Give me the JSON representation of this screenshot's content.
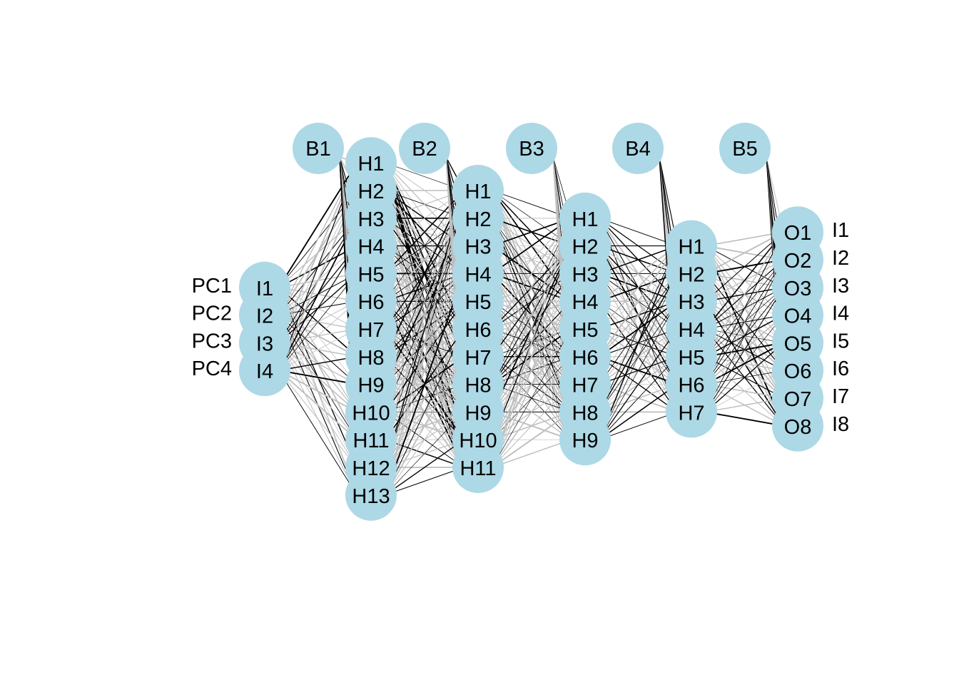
{
  "edge_colors": {
    "positive": "#000000",
    "negative": "#bebebe"
  },
  "node_color": "#add8e6",
  "input_labels": [
    "PC1",
    "PC2",
    "PC3",
    "PC4"
  ],
  "output_labels": [
    "I1",
    "I2",
    "I3",
    "I4",
    "I5",
    "I6",
    "I7",
    "I8"
  ],
  "bias_nodes": [
    "B1",
    "B2",
    "B3",
    "B4",
    "B5"
  ],
  "layers": [
    {
      "name": "input",
      "nodes": [
        "I1",
        "I2",
        "I3",
        "I4"
      ]
    },
    {
      "name": "hidden-1",
      "nodes": [
        "H1",
        "H2",
        "H3",
        "H4",
        "H5",
        "H6",
        "H7",
        "H8",
        "H9",
        "H10",
        "H11",
        "H12",
        "H13"
      ]
    },
    {
      "name": "hidden-2",
      "nodes": [
        "H1",
        "H2",
        "H3",
        "H4",
        "H5",
        "H6",
        "H7",
        "H8",
        "H9",
        "H10",
        "H11"
      ]
    },
    {
      "name": "hidden-3",
      "nodes": [
        "H1",
        "H2",
        "H3",
        "H4",
        "H5",
        "H6",
        "H7",
        "H8",
        "H9"
      ]
    },
    {
      "name": "hidden-4",
      "nodes": [
        "H1",
        "H2",
        "H3",
        "H4",
        "H5",
        "H6",
        "H7"
      ]
    },
    {
      "name": "output",
      "nodes": [
        "O1",
        "O2",
        "O3",
        "O4",
        "O5",
        "O6",
        "O7",
        "O8"
      ]
    }
  ]
}
